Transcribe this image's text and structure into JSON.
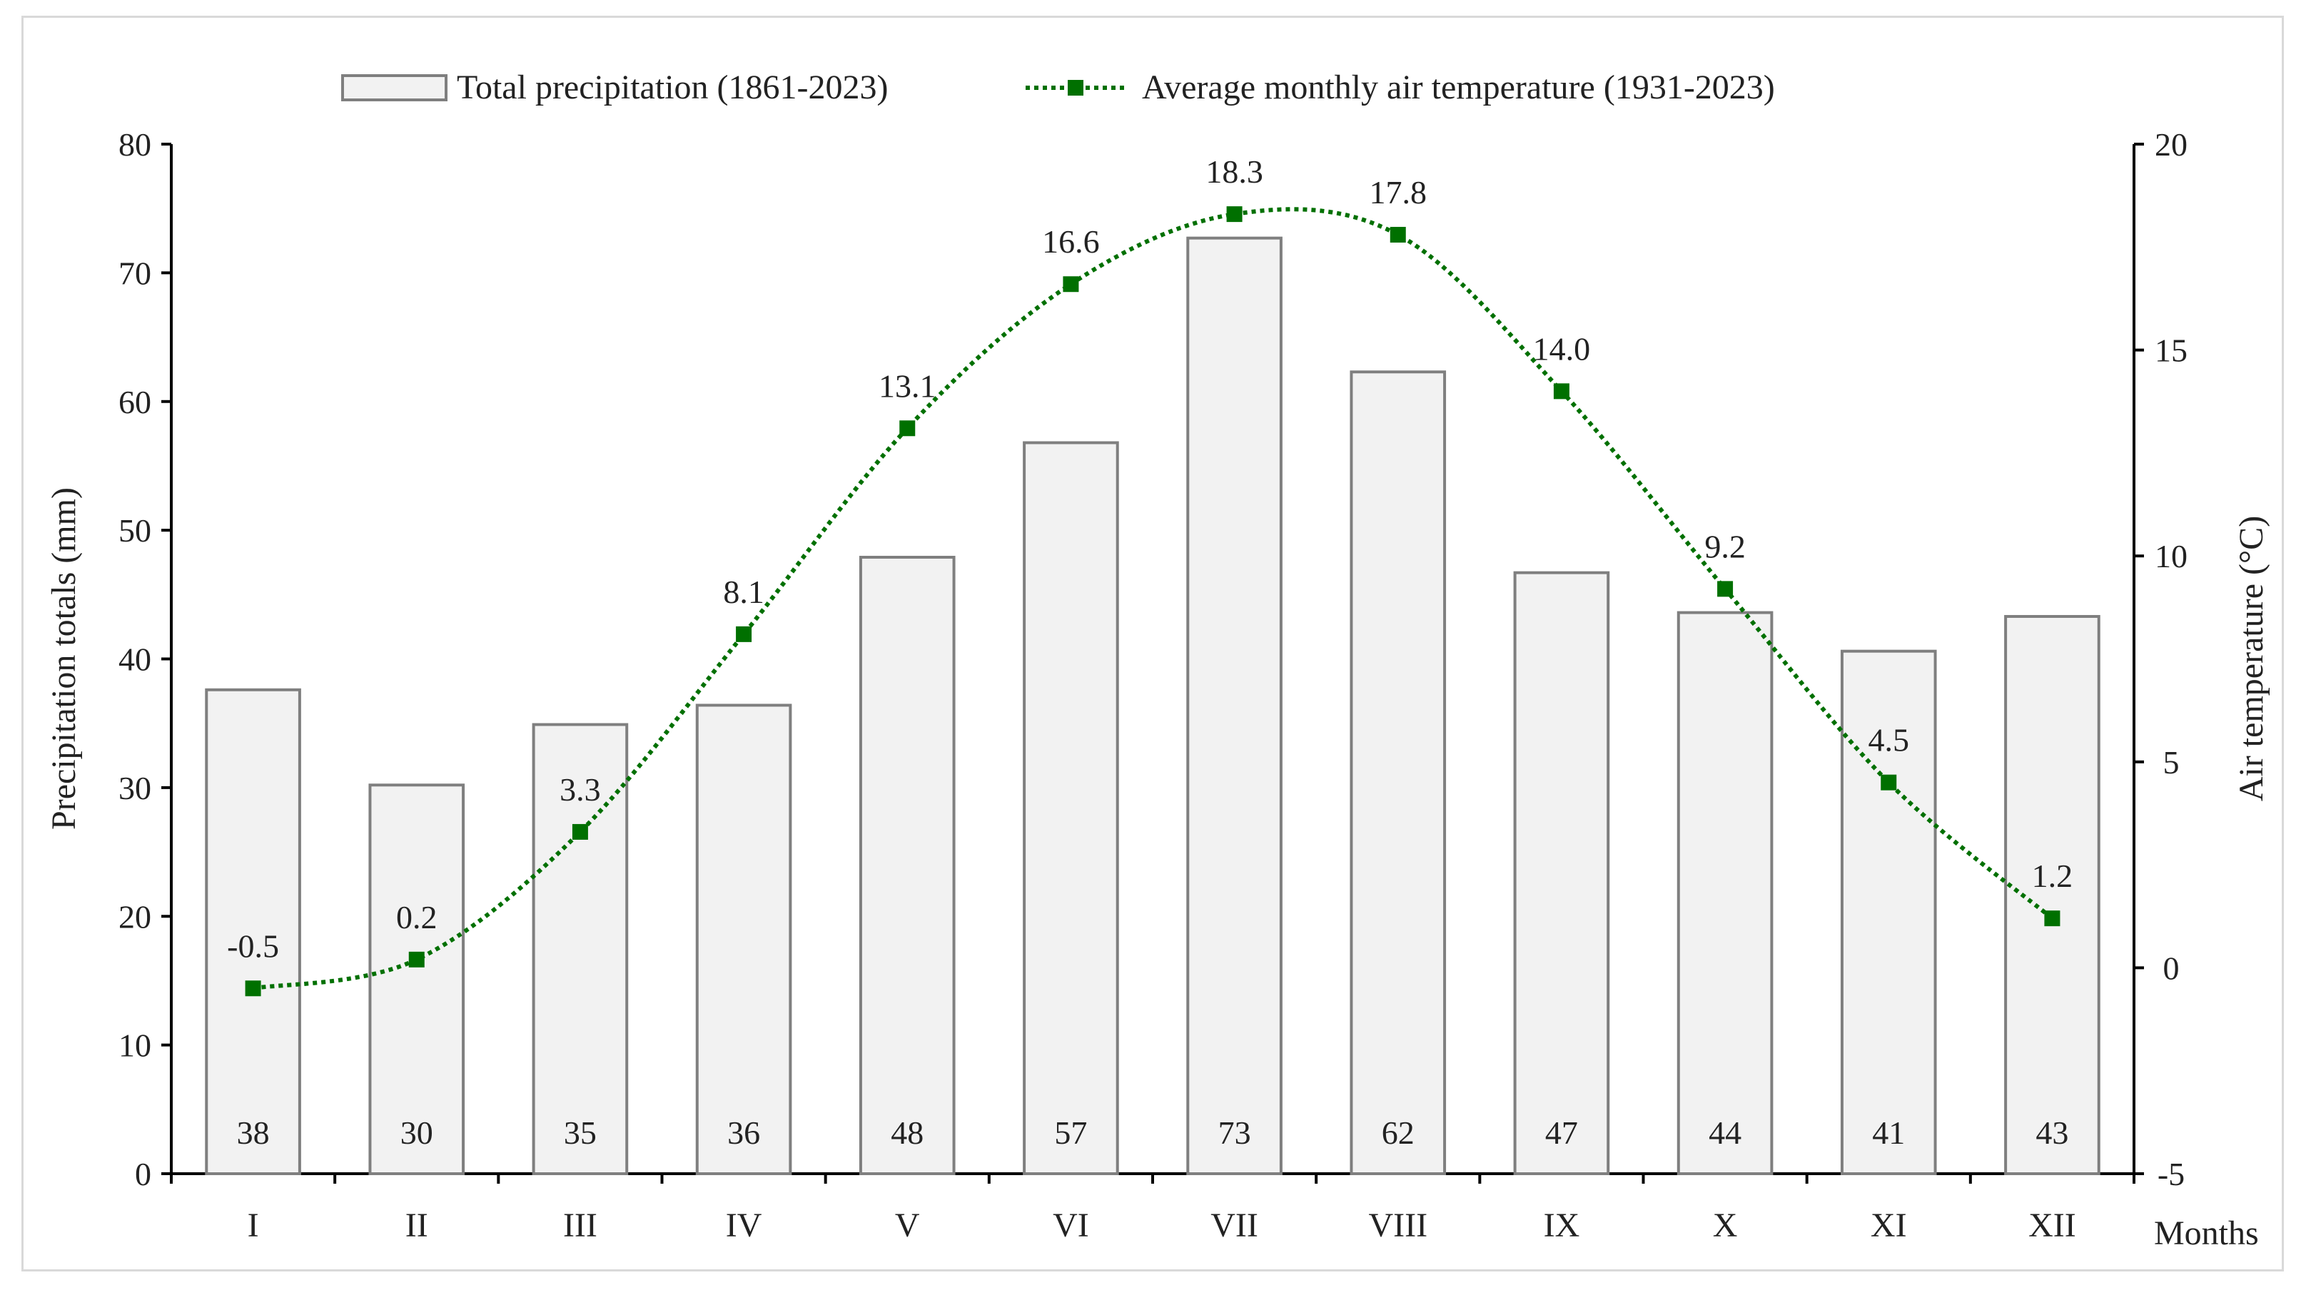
{
  "chart_data": {
    "type": "bar+line",
    "categories": [
      "I",
      "II",
      "III",
      "IV",
      "V",
      "VI",
      "VII",
      "VIII",
      "IX",
      "X",
      "XI",
      "XII"
    ],
    "series": [
      {
        "name": "Total precipitation (1861-2023)",
        "type": "bar",
        "axis": "left",
        "values": [
          37.6,
          30.2,
          34.9,
          36.4,
          47.9,
          56.8,
          72.7,
          62.3,
          46.7,
          43.6,
          40.6,
          43.3
        ],
        "labels": [
          "38",
          "30",
          "35",
          "36",
          "48",
          "57",
          "73",
          "62",
          "47",
          "44",
          "41",
          "43"
        ],
        "fill": "#f2f2f2",
        "stroke": "#7f7f7f"
      },
      {
        "name": "Average monthly air temperature (1931-2023)",
        "type": "line",
        "axis": "right",
        "values": [
          -0.5,
          0.2,
          3.3,
          8.1,
          13.1,
          16.6,
          18.3,
          17.8,
          14.0,
          9.2,
          4.5,
          1.2
        ],
        "labels": [
          "-0.5",
          "0.2",
          "3.3",
          "8.1",
          "13.1",
          "16.6",
          "18.3",
          "17.8",
          "14.0",
          "9.2",
          "4.5",
          "1.2"
        ],
        "color": "#007000"
      }
    ],
    "y_left": {
      "label": "Precipitation totals (mm)",
      "ylim": [
        0,
        80
      ],
      "ticks": [
        "0",
        "10",
        "20",
        "30",
        "40",
        "50",
        "60",
        "70",
        "80"
      ]
    },
    "y_right": {
      "label": "Air temperature (°C)",
      "ylim": [
        -5,
        20
      ],
      "ticks": [
        "-5",
        "0",
        "5",
        "10",
        "15",
        "20"
      ]
    },
    "xlabel": "Months",
    "legend_position": "top-center",
    "grid": false
  }
}
